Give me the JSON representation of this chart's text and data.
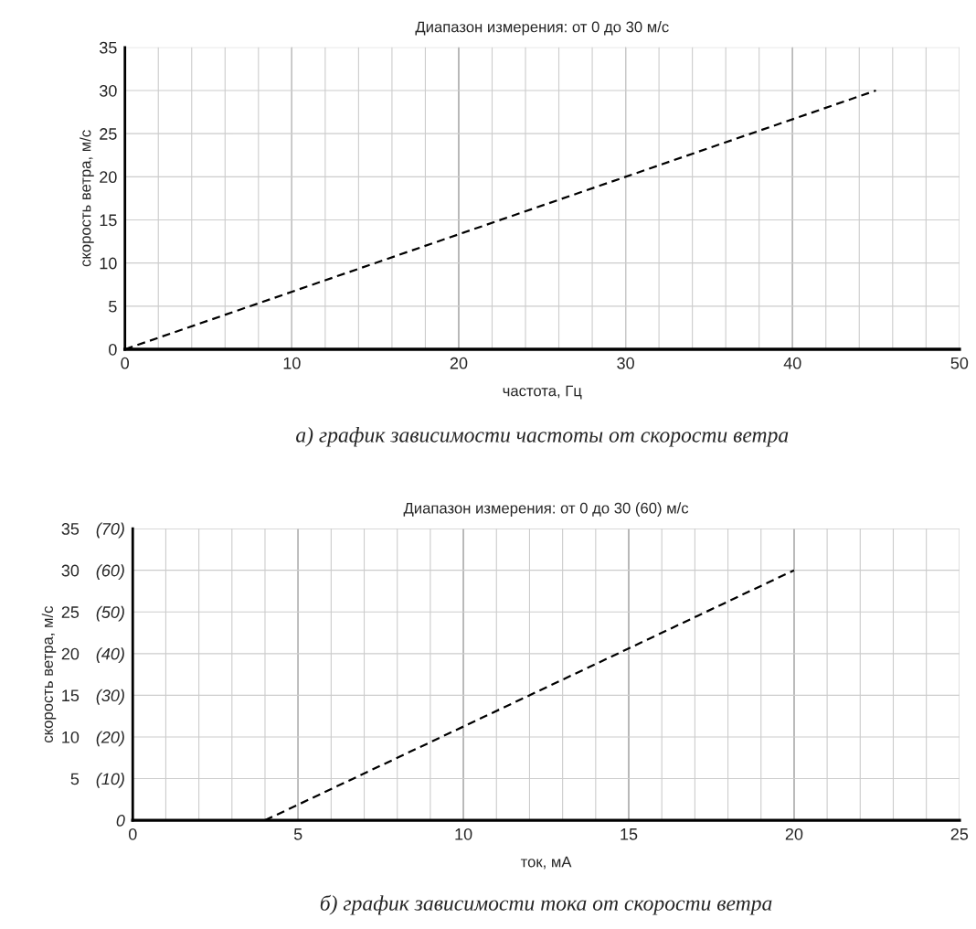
{
  "chart_data": [
    {
      "type": "line",
      "title": "Диапазон измерения: от 0 до 30 м/с",
      "xlabel": "частота, Гц",
      "ylabel": "скорость ветра, м/с",
      "x": [
        0,
        45
      ],
      "series": [
        {
          "color": "#000000",
          "values": [
            0,
            30
          ]
        }
      ],
      "xlim": [
        0,
        50
      ],
      "xticks": [
        0,
        {
          "value": 2,
          "label": null
        },
        {
          "value": 4,
          "label": null
        },
        {
          "value": 6,
          "label": null
        },
        {
          "value": 8,
          "label": null
        },
        10,
        {
          "value": 12,
          "label": null
        },
        {
          "value": 14,
          "label": null
        },
        {
          "value": 16,
          "label": null
        },
        {
          "value": 18,
          "label": null
        },
        20,
        {
          "value": 22,
          "label": null
        },
        {
          "value": 24,
          "label": null
        },
        {
          "value": 26,
          "label": null
        },
        {
          "value": 28,
          "label": null
        },
        30,
        {
          "value": 32,
          "label": null
        },
        {
          "value": 34,
          "label": null
        },
        {
          "value": 36,
          "label": null
        },
        {
          "value": 38,
          "label": null
        },
        40,
        {
          "value": 42,
          "label": null
        },
        {
          "value": 44,
          "label": null
        },
        {
          "value": 46,
          "label": null
        },
        {
          "value": 48,
          "label": null
        },
        50
      ],
      "ylim": [
        0,
        35
      ],
      "yticks": [
        0,
        5,
        10,
        15,
        20,
        25,
        30,
        35
      ],
      "grid": true,
      "line_style": "dashed",
      "marker": "none",
      "annotations": [
        "а) график зависимости частоты от скорости ветра"
      ]
    },
    {
      "type": "line",
      "title": "Диапазон измерения: от 0 до 30 (60) м/с",
      "xlabel": "ток, мА",
      "ylabel": "скорость ветра, м/с",
      "x": [
        4,
        20
      ],
      "series": [
        {
          "color": "#000000",
          "values": [
            0,
            30
          ]
        }
      ],
      "xlim": [
        0,
        25
      ],
      "xticks": [
        0,
        {
          "value": 1,
          "label": null
        },
        {
          "value": 2,
          "label": null
        },
        {
          "value": 3,
          "label": null
        },
        {
          "value": 4,
          "label": null
        },
        5,
        {
          "value": 6,
          "label": null
        },
        {
          "value": 7,
          "label": null
        },
        {
          "value": 8,
          "label": null
        },
        {
          "value": 9,
          "label": null
        },
        10,
        {
          "value": 11,
          "label": null
        },
        {
          "value": 12,
          "label": null
        },
        {
          "value": 13,
          "label": null
        },
        {
          "value": 14,
          "label": null
        },
        15,
        {
          "value": 16,
          "label": null
        },
        {
          "value": 17,
          "label": null
        },
        {
          "value": 18,
          "label": null
        },
        {
          "value": 19,
          "label": null
        },
        20,
        {
          "value": 21,
          "label": null
        },
        {
          "value": 22,
          "label": null
        },
        {
          "value": 23,
          "label": null
        },
        {
          "value": 24,
          "label": null
        },
        25
      ],
      "ylim": [
        0,
        35
      ],
      "yticks": [
        {
          "value": 0,
          "label": null
        },
        5,
        10,
        15,
        20,
        25,
        30,
        35
      ],
      "y2lim": [
        0,
        70
      ],
      "y2ticks": [
        0,
        {
          "value": 10,
          "label": "(10)"
        },
        {
          "value": 20,
          "label": "(20)"
        },
        {
          "value": 30,
          "label": "(30)"
        },
        {
          "value": 40,
          "label": "(40)"
        },
        {
          "value": 50,
          "label": "(50)"
        },
        {
          "value": 60,
          "label": "(60)"
        },
        {
          "value": 70,
          "label": "(70)"
        }
      ],
      "grid": true,
      "line_style": "dashed",
      "marker": "none",
      "annotations": [
        "б) график зависимости тока от скорости ветра"
      ]
    }
  ]
}
